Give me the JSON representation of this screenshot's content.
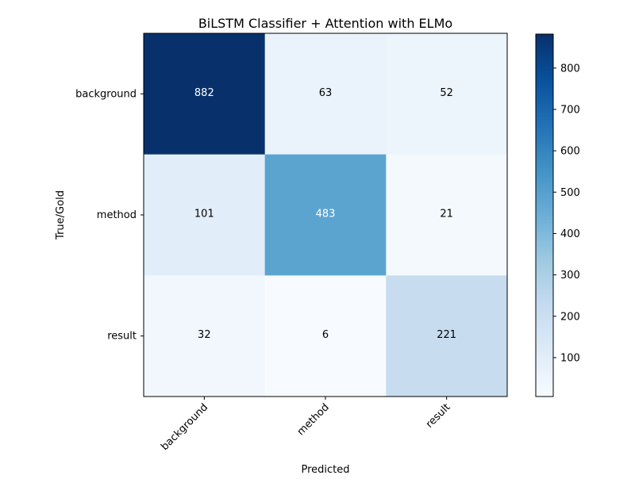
{
  "chart_data": {
    "type": "heatmap",
    "title": "BiLSTM Classifier + Attention with ELMo",
    "xlabel": "Predicted",
    "ylabel": "True/Gold",
    "x_categories": [
      "background",
      "method",
      "result"
    ],
    "y_categories": [
      "background",
      "method",
      "result"
    ],
    "values": [
      [
        882,
        63,
        52
      ],
      [
        101,
        483,
        21
      ],
      [
        32,
        6,
        221
      ]
    ],
    "colormap": "Blues",
    "color_range": [
      6,
      882
    ],
    "colorbar_ticks": [
      100,
      200,
      300,
      400,
      500,
      600,
      700,
      800
    ],
    "text_colors": {
      "dark": "#000000",
      "light": "#ffffff"
    }
  }
}
